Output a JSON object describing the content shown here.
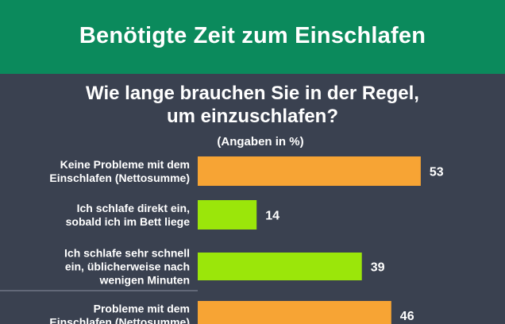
{
  "header": {
    "title": "Benötigte Zeit zum Einschlafen"
  },
  "colors": {
    "header_bg": "#0b8a5c",
    "background": "#3a4150",
    "bar_total": "#f7a434",
    "bar_sub": "#9be60a",
    "text": "#ffffff"
  },
  "chart_data": {
    "type": "bar",
    "orientation": "horizontal",
    "title": "Wie lange brauchen Sie in der Regel,\num einzuschlafen?",
    "title_lines": [
      "Wie lange brauchen Sie in der Regel,",
      "um einzuschlafen?"
    ],
    "subtitle": "(Angaben in %)",
    "xlabel": "",
    "ylabel": "",
    "xlim": [
      0,
      60
    ],
    "grid": false,
    "legend": "none",
    "categories": [
      [
        "Keine Probleme mit dem",
        "Einschlafen (Nettosumme)"
      ],
      [
        "Ich schlafe direkt ein,",
        "sobald ich im Bett liege"
      ],
      [
        "Ich schlafe sehr schnell",
        "ein, üblicherweise nach",
        "wenigen Minuten"
      ],
      [
        "Probleme mit dem",
        "Einschlafen (Nettosumme)"
      ]
    ],
    "values": [
      53,
      14,
      39,
      46
    ],
    "bar_colors": [
      "#f7a434",
      "#9be60a",
      "#9be60a",
      "#f7a434"
    ]
  }
}
